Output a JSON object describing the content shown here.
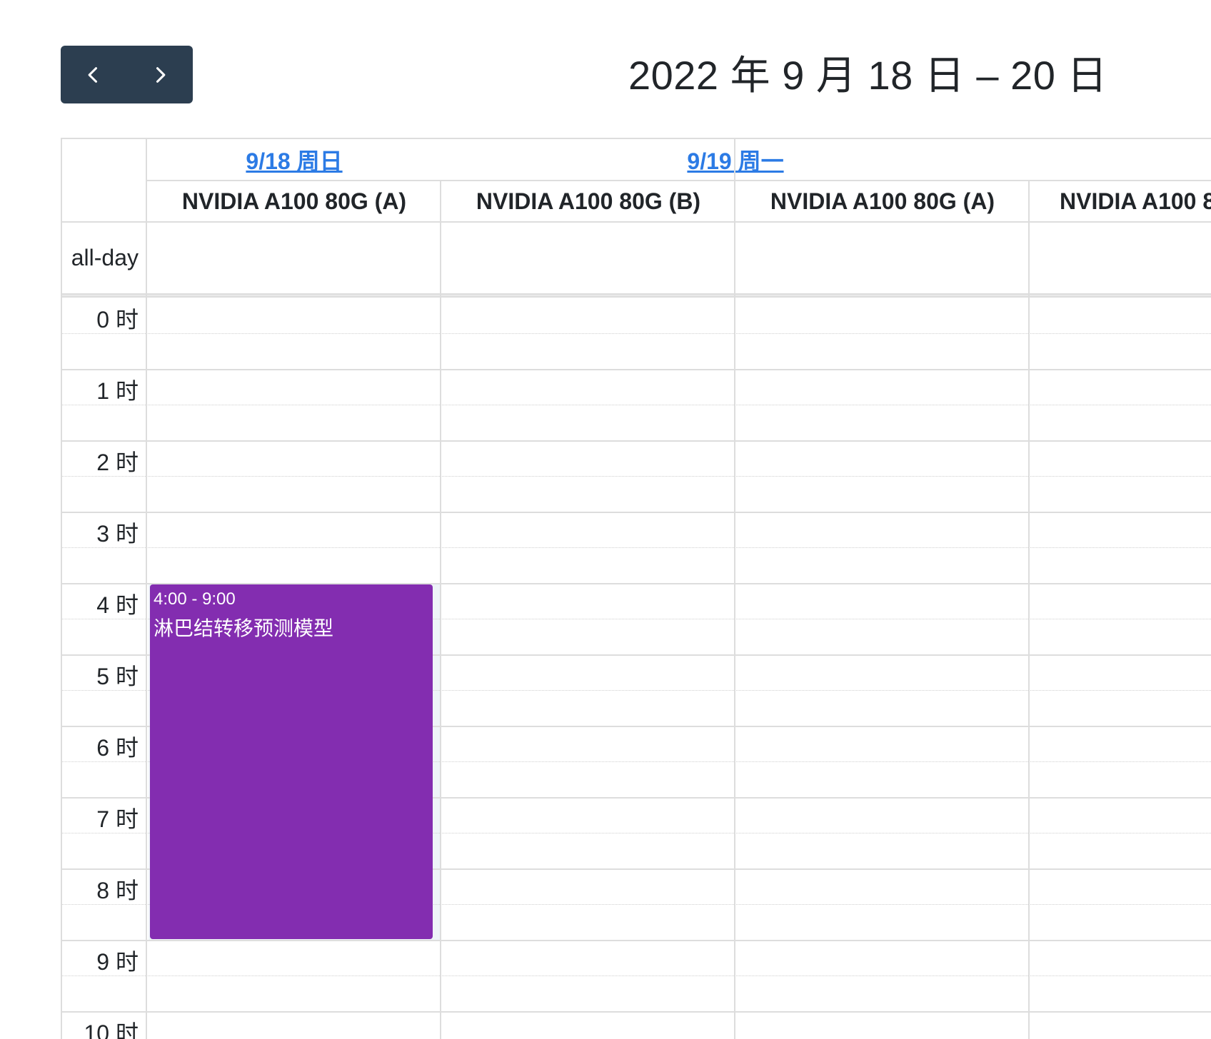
{
  "toolbar": {
    "prev_icon": "chevron-left-icon",
    "next_icon": "chevron-right-icon",
    "title": "2022 年 9 月 18 日 – 20 日",
    "nav_color": "#2c3e50"
  },
  "days": [
    {
      "label": "9/18 周日"
    },
    {
      "label": "9/19 周一"
    }
  ],
  "resources": [
    {
      "label": "NVIDIA A100 80G (A)"
    },
    {
      "label": "NVIDIA A100 80G (B)"
    },
    {
      "label": "NVIDIA A100 80G (A)"
    },
    {
      "label": "NVIDIA A100 8"
    }
  ],
  "allday_label": "all-day",
  "time_slots": [
    {
      "label": "0 时"
    },
    {
      "label": "1 时"
    },
    {
      "label": "2 时"
    },
    {
      "label": "3 时"
    },
    {
      "label": "4 时"
    },
    {
      "label": "5 时"
    },
    {
      "label": "6 时"
    },
    {
      "label": "7 时"
    },
    {
      "label": "8 时"
    },
    {
      "label": "9 时"
    },
    {
      "label": "10 时"
    }
  ],
  "events": [
    {
      "time": "4:00 - 9:00",
      "title": "淋巴结转移预测模型",
      "start_hour": 4,
      "end_hour": 9,
      "color": "#832db0"
    }
  ],
  "colors": {
    "link": "#2c7be5",
    "border": "#dddddd",
    "event_bg": "#832db0",
    "highlight": "#eef4f8"
  }
}
